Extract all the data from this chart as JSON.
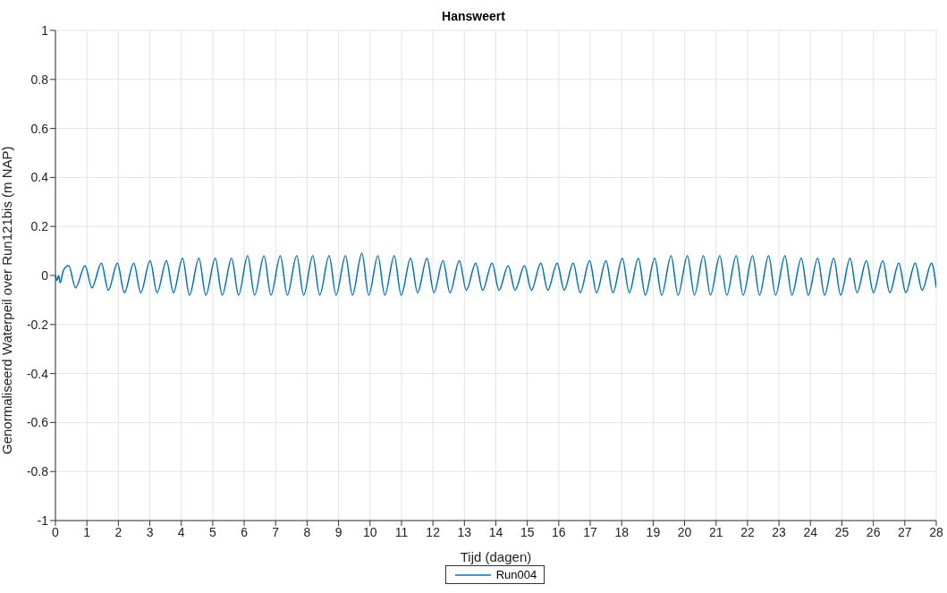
{
  "chart_data": {
    "type": "line",
    "title": "Hansweert",
    "xlabel": "Tijd (dagen)",
    "ylabel": "Genormaliseerd Waterpeil over Run121bis (m NAP)",
    "xlim": [
      0,
      28
    ],
    "xticks": [
      0,
      1,
      2,
      3,
      4,
      5,
      6,
      7,
      8,
      9,
      10,
      11,
      12,
      13,
      14,
      15,
      16,
      17,
      18,
      19,
      20,
      21,
      22,
      23,
      24,
      25,
      26,
      27,
      28
    ],
    "ylim": [
      -1,
      1
    ],
    "yticks": [
      -1,
      -0.8,
      -0.6,
      -0.4,
      -0.2,
      0,
      0.2,
      0.4,
      0.6,
      0.8,
      1
    ],
    "grid": true,
    "legend": "bottom",
    "marker": "none",
    "line_style": "solid",
    "series": [
      {
        "name": "Run004",
        "color": "#0072bd",
        "x": [
          0,
          0.05,
          0.1,
          0.15,
          0.25,
          0.42,
          0.64,
          0.94,
          1.16,
          1.46,
          1.68,
          1.97,
          2.19,
          2.49,
          2.71,
          3.01,
          3.23,
          3.53,
          3.75,
          4.04,
          4.26,
          4.56,
          4.78,
          5.08,
          5.3,
          5.6,
          5.82,
          6.11,
          6.33,
          6.63,
          6.85,
          7.15,
          7.37,
          7.67,
          7.89,
          8.18,
          8.4,
          8.7,
          8.92,
          9.22,
          9.44,
          9.74,
          9.96,
          10.25,
          10.47,
          10.77,
          10.99,
          11.29,
          11.51,
          11.81,
          12.03,
          12.32,
          12.54,
          12.84,
          13.06,
          13.36,
          13.58,
          13.88,
          14.1,
          14.39,
          14.61,
          14.91,
          15.13,
          15.43,
          15.65,
          15.95,
          16.17,
          16.46,
          16.68,
          16.98,
          17.2,
          17.5,
          17.72,
          18.02,
          18.24,
          18.53,
          18.75,
          19.05,
          19.27,
          19.57,
          19.79,
          20.09,
          20.31,
          20.6,
          20.82,
          21.12,
          21.34,
          21.64,
          21.86,
          22.16,
          22.38,
          22.67,
          22.89,
          23.19,
          23.41,
          23.71,
          23.93,
          24.23,
          24.45,
          24.74,
          24.96,
          25.26,
          25.48,
          25.78,
          26,
          26.3,
          26.52,
          26.81,
          27.03,
          27.33,
          27.55,
          27.85,
          28
        ],
        "values": [
          0,
          -0.02,
          0,
          -0.03,
          0.02,
          0.04,
          -0.05,
          0.04,
          -0.05,
          0.05,
          -0.06,
          0.05,
          -0.07,
          0.05,
          -0.07,
          0.06,
          -0.07,
          0.06,
          -0.07,
          0.07,
          -0.08,
          0.07,
          -0.08,
          0.07,
          -0.08,
          0.07,
          -0.08,
          0.08,
          -0.08,
          0.08,
          -0.08,
          0.08,
          -0.08,
          0.08,
          -0.08,
          0.08,
          -0.08,
          0.08,
          -0.08,
          0.08,
          -0.08,
          0.09,
          -0.08,
          0.08,
          -0.08,
          0.08,
          -0.08,
          0.07,
          -0.07,
          0.07,
          -0.07,
          0.06,
          -0.07,
          0.06,
          -0.06,
          0.05,
          -0.06,
          0.05,
          -0.06,
          0.04,
          -0.06,
          0.04,
          -0.06,
          0.05,
          -0.06,
          0.05,
          -0.06,
          0.05,
          -0.07,
          0.06,
          -0.07,
          0.06,
          -0.07,
          0.07,
          -0.07,
          0.07,
          -0.08,
          0.07,
          -0.08,
          0.08,
          -0.08,
          0.08,
          -0.08,
          0.08,
          -0.08,
          0.08,
          -0.08,
          0.08,
          -0.08,
          0.08,
          -0.08,
          0.08,
          -0.08,
          0.08,
          -0.08,
          0.07,
          -0.08,
          0.07,
          -0.08,
          0.07,
          -0.08,
          0.07,
          -0.07,
          0.06,
          -0.07,
          0.06,
          -0.07,
          0.05,
          -0.07,
          0.05,
          -0.06,
          0.05,
          -0.05
        ]
      }
    ]
  }
}
